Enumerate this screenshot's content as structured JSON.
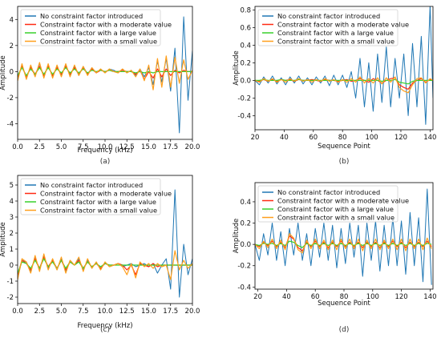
{
  "colors": {
    "no_constraint": "#1f77b4",
    "moderate": "#ff2a12",
    "large": "#38d12a",
    "small": "#ff9f1c"
  },
  "legend": [
    "No constraint factor introduced",
    "Constraint factor with a moderate value",
    "Constraint factor with a large value",
    "Constraint factor with a small value"
  ],
  "chart_data": [
    {
      "id": "a",
      "type": "line",
      "caption": "(a)",
      "xlabel": "Frequency (kHz)",
      "ylabel": "Amplitude",
      "xlim": [
        0,
        20
      ],
      "ylim": [
        -5.2,
        5.0
      ],
      "xticks": [
        "0.0",
        "2.5",
        "5.0",
        "7.5",
        "10.0",
        "12.5",
        "15.0",
        "17.5",
        "20.0"
      ],
      "yticks": [
        "-4",
        "-2",
        "0",
        "2",
        "4"
      ],
      "legend_position": "top-left",
      "x": [
        0.0,
        0.5,
        1.0,
        1.5,
        2.0,
        2.5,
        3.0,
        3.5,
        4.0,
        4.5,
        5.0,
        5.5,
        6.0,
        6.5,
        7.0,
        7.5,
        8.0,
        8.5,
        9.0,
        9.5,
        10.0,
        10.5,
        11.0,
        11.5,
        12.0,
        12.5,
        13.0,
        13.5,
        14.0,
        14.5,
        15.0,
        15.5,
        16.0,
        16.5,
        17.0,
        17.5,
        18.0,
        18.5,
        19.0,
        19.5,
        20.0
      ],
      "series": [
        {
          "name": "No constraint factor introduced",
          "color_key": "no_constraint",
          "values": [
            -0.6,
            0.5,
            -0.5,
            0.4,
            -0.3,
            0.6,
            -0.4,
            0.5,
            -0.4,
            0.4,
            -0.3,
            0.5,
            -0.3,
            0.4,
            -0.3,
            0.4,
            -0.2,
            0.3,
            -0.1,
            0.2,
            -0.1,
            0.2,
            0.1,
            -0.1,
            0.2,
            -0.1,
            0.1,
            -0.3,
            0.2,
            -0.4,
            0.3,
            -1.0,
            0.8,
            -0.8,
            1.0,
            -1.5,
            1.8,
            -4.7,
            4.2,
            -2.2,
            1.6
          ]
        },
        {
          "name": "Constraint factor with a moderate value",
          "color_key": "moderate",
          "values": [
            -0.4,
            0.4,
            -0.4,
            0.3,
            -0.2,
            0.4,
            -0.3,
            0.4,
            -0.3,
            0.3,
            -0.2,
            0.4,
            -0.2,
            0.3,
            -0.2,
            0.3,
            -0.2,
            0.2,
            -0.1,
            0.1,
            0.0,
            0.1,
            0.0,
            0.0,
            0.1,
            0.0,
            0.0,
            -0.2,
            0.1,
            -0.6,
            0.0,
            -0.5,
            0.2,
            -0.4,
            0.2,
            -0.3,
            0.1,
            -0.1,
            0.1,
            0.0,
            0.0
          ]
        },
        {
          "name": "Constraint factor with a large value",
          "color_key": "large",
          "values": [
            -0.3,
            0.3,
            -0.3,
            0.2,
            -0.2,
            0.3,
            -0.2,
            0.3,
            -0.2,
            0.2,
            -0.1,
            0.3,
            -0.1,
            0.2,
            -0.1,
            0.2,
            -0.1,
            0.1,
            0.0,
            0.1,
            0.0,
            0.1,
            0.0,
            0.0,
            0.0,
            0.0,
            0.0,
            -0.1,
            0.0,
            -0.1,
            0.0,
            -0.1,
            0.0,
            0.0,
            0.0,
            0.0,
            0.0,
            0.0,
            0.0,
            0.0,
            0.0
          ]
        },
        {
          "name": "Constraint factor with a small value",
          "color_key": "small",
          "values": [
            -0.7,
            0.6,
            -0.6,
            0.5,
            -0.4,
            0.7,
            -0.5,
            0.6,
            -0.5,
            0.5,
            -0.4,
            0.6,
            -0.4,
            0.5,
            -0.3,
            0.4,
            -0.3,
            0.3,
            -0.1,
            0.2,
            -0.1,
            0.2,
            0.0,
            -0.1,
            0.2,
            -0.1,
            0.1,
            -0.4,
            0.2,
            -0.7,
            0.5,
            -1.4,
            1.0,
            -1.2,
            1.2,
            -1.2,
            1.1,
            -0.9,
            0.9,
            -0.6,
            0.1
          ]
        }
      ]
    },
    {
      "id": "b",
      "type": "line",
      "caption": "(b)",
      "xlabel": "Sequence Point",
      "ylabel": "Amplitude",
      "xlim": [
        20,
        142
      ],
      "ylim": [
        -0.56,
        0.84
      ],
      "xticks": [
        "20",
        "40",
        "60",
        "80",
        "100",
        "120",
        "140"
      ],
      "yticks": [
        "-0.4",
        "-0.2",
        "0.0",
        "0.2",
        "0.4",
        "0.6",
        "0.8"
      ],
      "legend_position": "top-left",
      "x": [
        20,
        23,
        26,
        29,
        32,
        35,
        38,
        41,
        44,
        47,
        50,
        53,
        56,
        59,
        62,
        65,
        68,
        71,
        74,
        77,
        80,
        83,
        86,
        89,
        92,
        95,
        98,
        101,
        104,
        107,
        110,
        113,
        116,
        119,
        122,
        125,
        128,
        131,
        134,
        137,
        140,
        142
      ],
      "series": [
        {
          "name": "No constraint factor introduced",
          "color_key": "no_constraint",
          "values": [
            0.0,
            -0.05,
            0.04,
            -0.03,
            0.05,
            -0.04,
            0.03,
            -0.05,
            0.04,
            -0.03,
            0.05,
            -0.04,
            0.03,
            -0.05,
            0.04,
            -0.03,
            0.05,
            -0.06,
            0.06,
            -0.05,
            0.06,
            -0.08,
            0.1,
            -0.2,
            0.25,
            -0.3,
            0.2,
            -0.35,
            0.3,
            -0.25,
            0.38,
            -0.3,
            0.25,
            -0.2,
            0.3,
            -0.4,
            0.42,
            -0.3,
            0.5,
            -0.5,
            0.85,
            -0.2
          ]
        },
        {
          "name": "Constraint factor with a moderate value",
          "color_key": "moderate",
          "values": [
            0.0,
            -0.01,
            0.01,
            -0.01,
            0.01,
            -0.01,
            0.01,
            0.0,
            0.01,
            -0.01,
            0.01,
            0.0,
            0.0,
            0.01,
            0.0,
            -0.01,
            0.01,
            0.0,
            0.0,
            -0.01,
            0.0,
            0.01,
            -0.01,
            0.0,
            0.02,
            0.0,
            -0.02,
            0.02,
            0.0,
            -0.03,
            0.0,
            0.02,
            0.03,
            -0.05,
            -0.08,
            -0.1,
            -0.03,
            0.0,
            0.02,
            -0.02,
            0.01,
            0.0
          ]
        },
        {
          "name": "Constraint factor with a large value",
          "color_key": "large",
          "values": [
            0.0,
            0.0,
            0.01,
            0.0,
            0.0,
            0.0,
            0.01,
            0.0,
            0.0,
            0.0,
            0.01,
            0.0,
            0.0,
            0.0,
            0.0,
            0.0,
            0.0,
            0.0,
            0.0,
            0.0,
            0.0,
            0.0,
            0.0,
            0.0,
            0.0,
            0.0,
            0.0,
            0.0,
            0.0,
            -0.01,
            0.0,
            0.0,
            0.01,
            -0.02,
            -0.03,
            -0.04,
            -0.01,
            0.0,
            0.0,
            0.0,
            0.0,
            0.0
          ]
        },
        {
          "name": "Constraint factor with a small value",
          "color_key": "small",
          "values": [
            0.0,
            -0.02,
            0.02,
            -0.01,
            0.02,
            -0.02,
            0.01,
            -0.02,
            0.02,
            -0.01,
            0.02,
            -0.01,
            0.01,
            -0.02,
            0.01,
            -0.01,
            0.02,
            -0.01,
            0.01,
            -0.02,
            0.01,
            -0.02,
            0.02,
            -0.02,
            0.04,
            -0.03,
            0.02,
            -0.03,
            0.03,
            -0.04,
            0.03,
            -0.02,
            0.04,
            -0.08,
            -0.12,
            -0.14,
            -0.05,
            0.02,
            0.03,
            -0.03,
            0.02,
            0.0
          ]
        }
      ]
    },
    {
      "id": "c",
      "type": "line",
      "caption": "(c)",
      "xlabel": "Frequency (kHz)",
      "ylabel": "Amplitude",
      "xlim": [
        0,
        20
      ],
      "ylim": [
        -2.4,
        5.6
      ],
      "xticks": [
        "0.0",
        "2.5",
        "5.0",
        "7.5",
        "10.0",
        "12.5",
        "15.0",
        "17.5",
        "20.0"
      ],
      "yticks": [
        "-2",
        "-1",
        "0",
        "1",
        "2",
        "3",
        "4",
        "5"
      ],
      "legend_position": "top-left",
      "x": [
        0.0,
        0.5,
        1.0,
        1.5,
        2.0,
        2.5,
        3.0,
        3.5,
        4.0,
        4.5,
        5.0,
        5.5,
        6.0,
        6.5,
        7.0,
        7.5,
        8.0,
        8.5,
        9.0,
        9.5,
        10.0,
        10.5,
        11.0,
        11.5,
        12.0,
        12.5,
        13.0,
        13.5,
        14.0,
        14.5,
        15.0,
        15.5,
        16.0,
        16.5,
        17.0,
        17.5,
        18.0,
        18.5,
        19.0,
        19.5,
        20.0
      ],
      "series": [
        {
          "name": "No constraint factor introduced",
          "color_key": "no_constraint",
          "values": [
            -0.8,
            0.3,
            0.2,
            -0.4,
            0.5,
            -0.3,
            0.6,
            -0.2,
            0.3,
            -0.3,
            0.4,
            -0.4,
            0.3,
            0.0,
            0.4,
            -0.3,
            0.3,
            -0.2,
            0.2,
            -0.3,
            0.2,
            -0.1,
            0.0,
            0.1,
            -0.1,
            0.0,
            0.1,
            -0.1,
            0.0,
            0.1,
            -0.1,
            0.1,
            -0.5,
            0.0,
            0.4,
            -1.5,
            4.7,
            -2.0,
            1.3,
            -0.6,
            0.4
          ]
        },
        {
          "name": "Constraint factor with a moderate value",
          "color_key": "moderate",
          "values": [
            -0.6,
            0.3,
            0.1,
            -0.3,
            0.4,
            -0.2,
            0.5,
            -0.1,
            0.3,
            -0.2,
            0.3,
            -0.3,
            0.2,
            0.0,
            0.3,
            -0.2,
            0.2,
            -0.1,
            0.1,
            -0.2,
            0.1,
            0.0,
            0.0,
            0.1,
            0.0,
            -0.3,
            0.0,
            -0.6,
            0.1,
            0.0,
            -0.1,
            0.1,
            -0.1,
            0.0,
            0.0,
            0.0,
            0.0,
            0.0,
            0.0,
            0.0,
            0.0
          ]
        },
        {
          "name": "Constraint factor with a large value",
          "color_key": "large",
          "values": [
            -0.5,
            0.2,
            0.1,
            -0.2,
            0.3,
            -0.2,
            0.4,
            -0.1,
            0.2,
            -0.2,
            0.3,
            -0.2,
            0.2,
            0.0,
            0.2,
            -0.2,
            0.2,
            -0.1,
            0.1,
            -0.1,
            0.1,
            0.0,
            0.0,
            0.0,
            0.0,
            0.0,
            0.0,
            0.0,
            0.0,
            0.0,
            0.0,
            0.0,
            0.0,
            0.0,
            0.0,
            0.0,
            0.0,
            0.0,
            0.0,
            0.0,
            0.0
          ]
        },
        {
          "name": "Constraint factor with a small value",
          "color_key": "small",
          "values": [
            -0.9,
            0.4,
            0.2,
            -0.5,
            0.6,
            -0.4,
            0.7,
            -0.3,
            0.4,
            -0.3,
            0.5,
            -0.5,
            0.3,
            0.0,
            0.5,
            -0.4,
            0.4,
            -0.2,
            0.2,
            -0.3,
            0.2,
            -0.1,
            0.0,
            0.1,
            -0.1,
            -0.6,
            0.1,
            -0.8,
            0.2,
            -0.1,
            0.1,
            -0.2,
            0.1,
            -0.1,
            0.0,
            -0.9,
            0.9,
            -0.3,
            0.3,
            -0.2,
            0.1
          ]
        }
      ]
    },
    {
      "id": "d",
      "type": "line",
      "caption": "(d)",
      "xlabel": "Sequence Point",
      "ylabel": "Amplitude",
      "xlim": [
        18,
        142
      ],
      "ylim": [
        -0.42,
        0.58
      ],
      "xticks": [
        "20",
        "40",
        "60",
        "80",
        "100",
        "120",
        "140"
      ],
      "yticks": [
        "-0.4",
        "-0.2",
        "0.0",
        "0.2",
        "0.4"
      ],
      "legend_position": "top-left",
      "x": [
        18,
        21,
        24,
        27,
        30,
        33,
        36,
        39,
        42,
        45,
        48,
        51,
        54,
        57,
        60,
        63,
        66,
        69,
        72,
        75,
        78,
        81,
        84,
        87,
        90,
        93,
        96,
        99,
        102,
        105,
        108,
        111,
        114,
        117,
        120,
        123,
        126,
        129,
        132,
        135,
        138,
        141
      ],
      "series": [
        {
          "name": "No constraint factor introduced",
          "color_key": "no_constraint",
          "values": [
            0.0,
            -0.15,
            0.1,
            -0.1,
            0.2,
            -0.15,
            0.12,
            -0.2,
            0.15,
            -0.1,
            0.2,
            -0.15,
            0.1,
            -0.2,
            0.15,
            -0.12,
            0.2,
            -0.15,
            0.18,
            -0.22,
            0.15,
            -0.18,
            0.2,
            -0.12,
            0.18,
            -0.3,
            0.2,
            -0.15,
            0.22,
            -0.25,
            0.18,
            -0.2,
            0.25,
            -0.2,
            0.22,
            -0.28,
            0.3,
            -0.2,
            0.25,
            -0.35,
            0.52,
            -0.38
          ]
        },
        {
          "name": "Constraint factor with a moderate value",
          "color_key": "moderate",
          "values": [
            0.0,
            -0.02,
            0.02,
            -0.01,
            0.03,
            -0.02,
            0.02,
            -0.03,
            0.08,
            0.05,
            -0.03,
            -0.06,
            0.02,
            -0.02,
            0.03,
            -0.02,
            0.02,
            -0.03,
            0.02,
            -0.02,
            0.03,
            -0.02,
            0.02,
            -0.02,
            0.02,
            -0.03,
            0.02,
            -0.02,
            0.02,
            -0.03,
            0.02,
            -0.02,
            0.03,
            -0.02,
            0.02,
            -0.03,
            0.02,
            -0.02,
            0.02,
            -0.02,
            0.03,
            -0.02
          ]
        },
        {
          "name": "Constraint factor with a large value",
          "color_key": "large",
          "values": [
            0.0,
            -0.01,
            0.01,
            0.0,
            0.01,
            -0.01,
            0.01,
            -0.01,
            0.03,
            0.02,
            -0.01,
            -0.03,
            0.01,
            -0.01,
            0.01,
            -0.01,
            0.01,
            -0.01,
            0.01,
            -0.01,
            0.01,
            -0.01,
            0.01,
            -0.01,
            0.01,
            -0.01,
            0.01,
            -0.01,
            0.01,
            -0.01,
            0.01,
            -0.01,
            0.01,
            -0.01,
            0.01,
            -0.01,
            0.01,
            -0.01,
            0.01,
            -0.01,
            0.01,
            0.0
          ]
        },
        {
          "name": "Constraint factor with a small value",
          "color_key": "small",
          "values": [
            0.0,
            -0.04,
            0.03,
            -0.03,
            0.05,
            -0.04,
            0.04,
            -0.05,
            0.1,
            0.06,
            -0.05,
            -0.08,
            0.04,
            -0.04,
            0.05,
            -0.04,
            0.04,
            -0.05,
            0.04,
            -0.05,
            0.05,
            -0.04,
            0.05,
            -0.04,
            0.05,
            -0.06,
            0.04,
            -0.04,
            0.05,
            -0.05,
            0.04,
            -0.04,
            0.05,
            -0.05,
            0.05,
            -0.06,
            0.05,
            -0.04,
            0.05,
            -0.05,
            0.06,
            -0.04
          ]
        }
      ]
    }
  ]
}
